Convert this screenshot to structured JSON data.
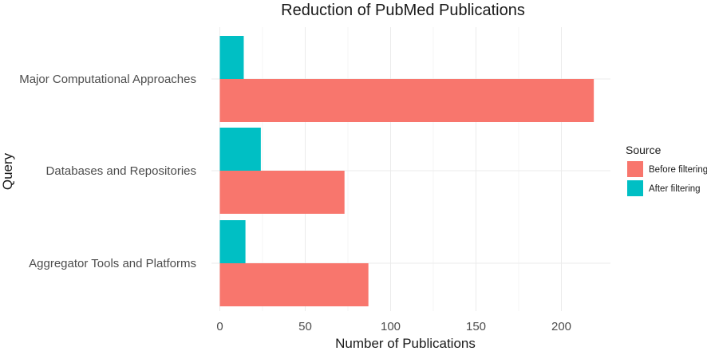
{
  "chart_data": {
    "type": "bar",
    "orientation": "horizontal",
    "title": "Reduction of PubMed Publications",
    "xlabel": "Number of Publications",
    "ylabel": "Query",
    "categories": [
      "Major Computational Approaches",
      "Databases and Repositories",
      "Aggregator Tools and Platforms"
    ],
    "series": [
      {
        "name": "Before filtering",
        "color": "#F8766D",
        "values": [
          219,
          73,
          87
        ]
      },
      {
        "name": "After filtering",
        "color": "#00BFC4",
        "values": [
          14,
          24,
          15
        ]
      }
    ],
    "xlim": [
      0,
      230
    ],
    "xticks": [
      0,
      50,
      100,
      150,
      200
    ],
    "grid": true,
    "legend": {
      "title": "Source",
      "position": "right"
    }
  }
}
